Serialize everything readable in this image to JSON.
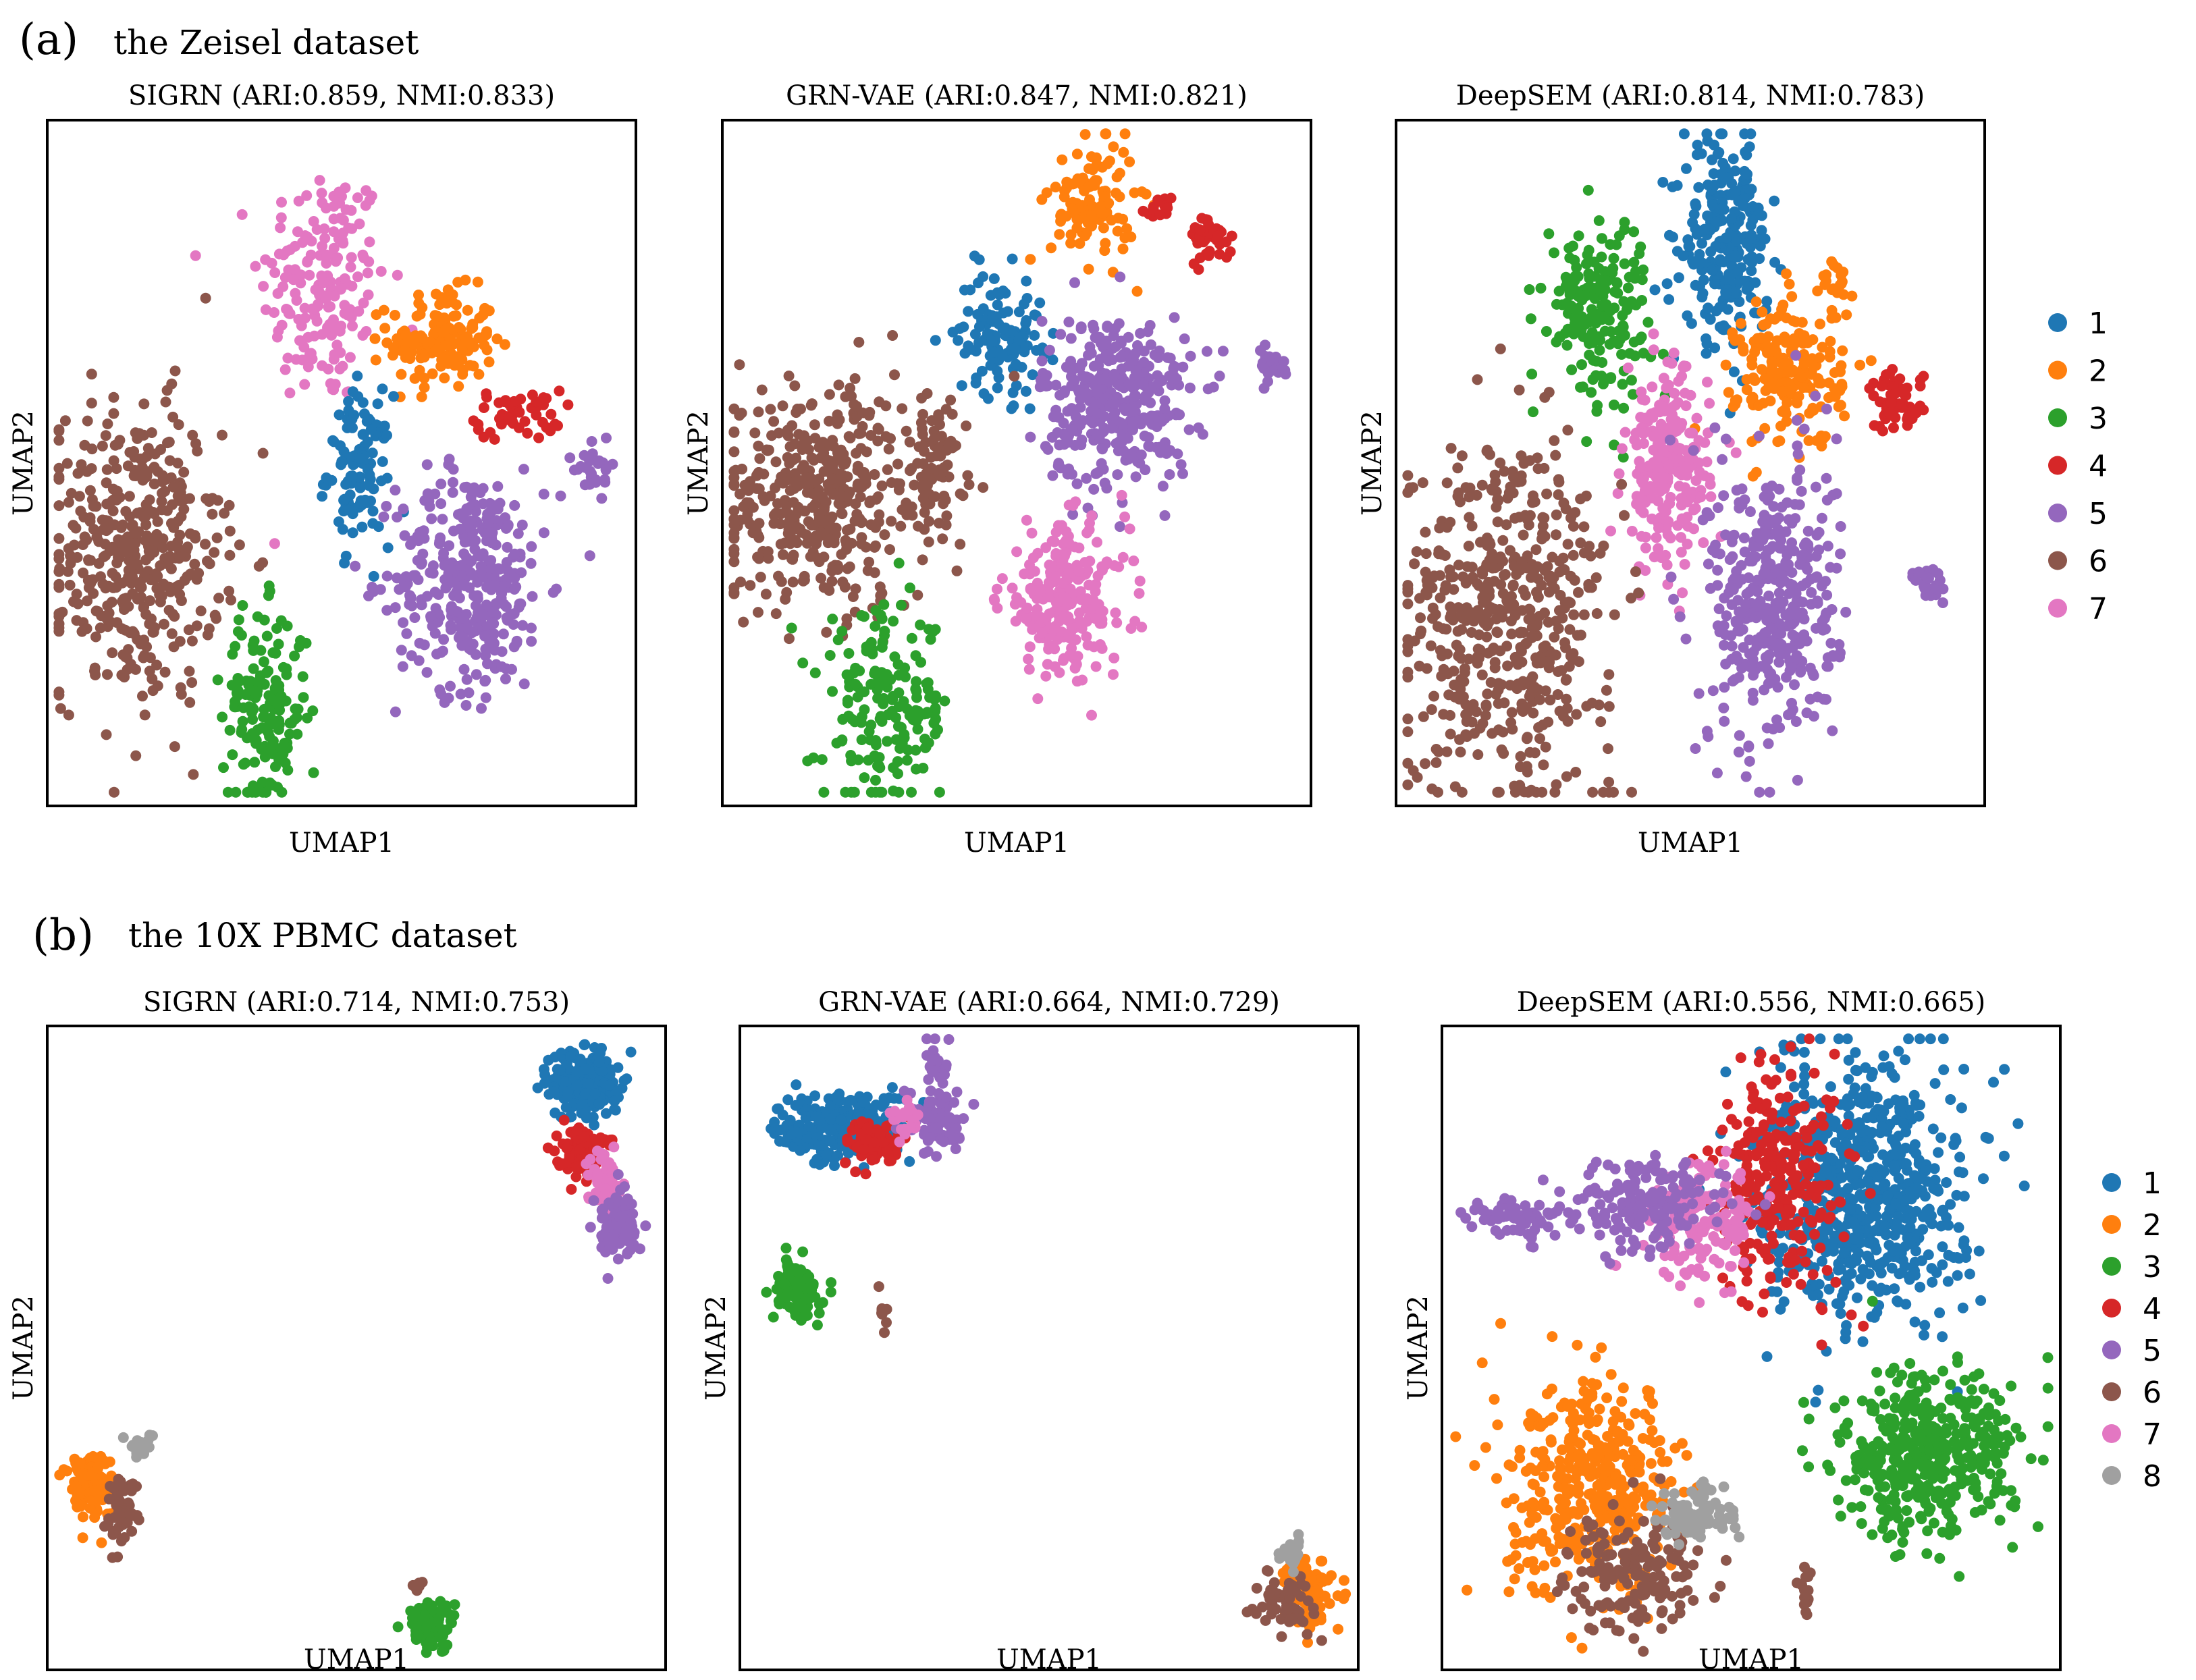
{
  "colors": {
    "1": "#1f77b4",
    "2": "#ff7f0e",
    "3": "#2ca02c",
    "4": "#d62728",
    "5": "#9467bd",
    "6": "#8c564b",
    "7": "#e377c2",
    "8": "#a0a0a0"
  },
  "panel_a": {
    "letter": "(a)",
    "heading": "the Zeisel dataset",
    "legend": [
      "1",
      "2",
      "3",
      "4",
      "5",
      "6",
      "7"
    ]
  },
  "panel_b": {
    "letter": "(b)",
    "heading": "the 10X PBMC dataset",
    "legend": [
      "1",
      "2",
      "3",
      "4",
      "5",
      "6",
      "7",
      "8"
    ]
  },
  "chart_data": [
    {
      "type": "scatter",
      "panel": "a",
      "title": "SIGRN (ARI:0.859, NMI:0.833)",
      "xlabel": "UMAP1",
      "ylabel": "UMAP2",
      "xlim": [
        0,
        1
      ],
      "ylim": [
        0,
        1
      ],
      "clusters": [
        {
          "label": "7",
          "cx": 0.47,
          "cy": 0.76,
          "sx": 0.06,
          "sy": 0.1,
          "n": 180
        },
        {
          "label": "2",
          "cx": 0.67,
          "cy": 0.68,
          "sx": 0.05,
          "sy": 0.04,
          "n": 150
        },
        {
          "label": "4",
          "cx": 0.8,
          "cy": 0.57,
          "sx": 0.04,
          "sy": 0.02,
          "n": 50
        },
        {
          "label": "1",
          "cx": 0.53,
          "cy": 0.49,
          "sx": 0.03,
          "sy": 0.06,
          "n": 110
        },
        {
          "label": "6",
          "cx": 0.15,
          "cy": 0.37,
          "sx": 0.08,
          "sy": 0.12,
          "n": 420
        },
        {
          "label": "5",
          "cx": 0.72,
          "cy": 0.33,
          "sx": 0.07,
          "sy": 0.09,
          "n": 350
        },
        {
          "label": "5",
          "cx": 0.93,
          "cy": 0.49,
          "sx": 0.02,
          "sy": 0.02,
          "n": 30
        },
        {
          "label": "3",
          "cx": 0.37,
          "cy": 0.14,
          "sx": 0.04,
          "sy": 0.08,
          "n": 170
        }
      ]
    },
    {
      "type": "scatter",
      "panel": "a",
      "title": "GRN-VAE (ARI:0.847, NMI:0.821)",
      "xlabel": "UMAP1",
      "ylabel": "UMAP2",
      "xlim": [
        0,
        1
      ],
      "ylim": [
        0,
        1
      ],
      "clusters": [
        {
          "label": "2",
          "cx": 0.63,
          "cy": 0.88,
          "sx": 0.04,
          "sy": 0.05,
          "n": 110
        },
        {
          "label": "4",
          "cx": 0.83,
          "cy": 0.83,
          "sx": 0.02,
          "sy": 0.02,
          "n": 40
        },
        {
          "label": "4",
          "cx": 0.74,
          "cy": 0.87,
          "sx": 0.015,
          "sy": 0.01,
          "n": 15
        },
        {
          "label": "1",
          "cx": 0.47,
          "cy": 0.69,
          "sx": 0.04,
          "sy": 0.05,
          "n": 120
        },
        {
          "label": "5",
          "cx": 0.67,
          "cy": 0.59,
          "sx": 0.07,
          "sy": 0.07,
          "n": 360
        },
        {
          "label": "5",
          "cx": 0.93,
          "cy": 0.64,
          "sx": 0.02,
          "sy": 0.015,
          "n": 25
        },
        {
          "label": "6",
          "cx": 0.17,
          "cy": 0.45,
          "sx": 0.1,
          "sy": 0.09,
          "n": 430
        },
        {
          "label": "6",
          "cx": 0.36,
          "cy": 0.5,
          "sx": 0.03,
          "sy": 0.05,
          "n": 70
        },
        {
          "label": "7",
          "cx": 0.58,
          "cy": 0.3,
          "sx": 0.06,
          "sy": 0.06,
          "n": 240
        },
        {
          "label": "3",
          "cx": 0.28,
          "cy": 0.14,
          "sx": 0.06,
          "sy": 0.08,
          "n": 180
        }
      ]
    },
    {
      "type": "scatter",
      "panel": "a",
      "title": "DeepSEM (ARI:0.814, NMI:0.783)",
      "xlabel": "UMAP1",
      "ylabel": "UMAP2",
      "xlim": [
        0,
        1
      ],
      "ylim": [
        0,
        1
      ],
      "clusters": [
        {
          "label": "1",
          "cx": 0.56,
          "cy": 0.82,
          "sx": 0.04,
          "sy": 0.08,
          "n": 250
        },
        {
          "label": "3",
          "cx": 0.34,
          "cy": 0.73,
          "sx": 0.05,
          "sy": 0.07,
          "n": 190
        },
        {
          "label": "2",
          "cx": 0.67,
          "cy": 0.63,
          "sx": 0.05,
          "sy": 0.06,
          "n": 200
        },
        {
          "label": "2",
          "cx": 0.75,
          "cy": 0.76,
          "sx": 0.015,
          "sy": 0.02,
          "n": 20
        },
        {
          "label": "4",
          "cx": 0.85,
          "cy": 0.59,
          "sx": 0.025,
          "sy": 0.025,
          "n": 60
        },
        {
          "label": "7",
          "cx": 0.46,
          "cy": 0.49,
          "sx": 0.04,
          "sy": 0.08,
          "n": 230
        },
        {
          "label": "6",
          "cx": 0.19,
          "cy": 0.28,
          "sx": 0.1,
          "sy": 0.14,
          "n": 520
        },
        {
          "label": "5",
          "cx": 0.64,
          "cy": 0.3,
          "sx": 0.06,
          "sy": 0.12,
          "n": 400
        },
        {
          "label": "5",
          "cx": 0.91,
          "cy": 0.32,
          "sx": 0.015,
          "sy": 0.02,
          "n": 25
        }
      ]
    },
    {
      "type": "scatter",
      "panel": "b",
      "title": "SIGRN (ARI:0.714, NMI:0.753)",
      "xlabel": "UMAP1",
      "ylabel": "UMAP2",
      "xlim": [
        0,
        1
      ],
      "ylim": [
        0,
        1
      ],
      "clusters": [
        {
          "label": "1",
          "cx": 0.87,
          "cy": 0.91,
          "sx": 0.03,
          "sy": 0.03,
          "n": 220
        },
        {
          "label": "4",
          "cx": 0.86,
          "cy": 0.81,
          "sx": 0.02,
          "sy": 0.02,
          "n": 100
        },
        {
          "label": "7",
          "cx": 0.9,
          "cy": 0.76,
          "sx": 0.015,
          "sy": 0.025,
          "n": 60
        },
        {
          "label": "5",
          "cx": 0.92,
          "cy": 0.69,
          "sx": 0.02,
          "sy": 0.03,
          "n": 80
        },
        {
          "label": "2",
          "cx": 0.07,
          "cy": 0.29,
          "sx": 0.02,
          "sy": 0.03,
          "n": 120
        },
        {
          "label": "6",
          "cx": 0.12,
          "cy": 0.25,
          "sx": 0.015,
          "sy": 0.03,
          "n": 50
        },
        {
          "label": "8",
          "cx": 0.15,
          "cy": 0.35,
          "sx": 0.012,
          "sy": 0.01,
          "n": 25
        },
        {
          "label": "3",
          "cx": 0.62,
          "cy": 0.07,
          "sx": 0.02,
          "sy": 0.02,
          "n": 110
        },
        {
          "label": "6",
          "cx": 0.6,
          "cy": 0.13,
          "sx": 0.005,
          "sy": 0.01,
          "n": 8
        }
      ]
    },
    {
      "type": "scatter",
      "panel": "b",
      "title": "GRN-VAE (ARI:0.664, NMI:0.729)",
      "xlabel": "UMAP1",
      "ylabel": "UMAP2",
      "xlim": [
        0,
        1
      ],
      "ylim": [
        0,
        1
      ],
      "clusters": [
        {
          "label": "1",
          "cx": 0.17,
          "cy": 0.84,
          "sx": 0.06,
          "sy": 0.03,
          "n": 260
        },
        {
          "label": "4",
          "cx": 0.22,
          "cy": 0.82,
          "sx": 0.025,
          "sy": 0.02,
          "n": 90
        },
        {
          "label": "5",
          "cx": 0.32,
          "cy": 0.85,
          "sx": 0.025,
          "sy": 0.03,
          "n": 70
        },
        {
          "label": "5",
          "cx": 0.32,
          "cy": 0.94,
          "sx": 0.012,
          "sy": 0.025,
          "n": 25
        },
        {
          "label": "7",
          "cx": 0.27,
          "cy": 0.85,
          "sx": 0.015,
          "sy": 0.015,
          "n": 25
        },
        {
          "label": "3",
          "cx": 0.09,
          "cy": 0.59,
          "sx": 0.02,
          "sy": 0.025,
          "n": 120
        },
        {
          "label": "6",
          "cx": 0.23,
          "cy": 0.55,
          "sx": 0.005,
          "sy": 0.015,
          "n": 8
        },
        {
          "label": "2",
          "cx": 0.92,
          "cy": 0.12,
          "sx": 0.02,
          "sy": 0.03,
          "n": 120
        },
        {
          "label": "6",
          "cx": 0.88,
          "cy": 0.11,
          "sx": 0.025,
          "sy": 0.025,
          "n": 60
        },
        {
          "label": "8",
          "cx": 0.89,
          "cy": 0.18,
          "sx": 0.012,
          "sy": 0.012,
          "n": 20
        }
      ]
    },
    {
      "type": "scatter",
      "panel": "b",
      "title": "DeepSEM (ARI:0.556, NMI:0.665)",
      "xlabel": "UMAP1",
      "ylabel": "UMAP2",
      "xlim": [
        0,
        1
      ],
      "ylim": [
        0,
        1
      ],
      "clusters": [
        {
          "label": "1",
          "cx": 0.68,
          "cy": 0.74,
          "sx": 0.09,
          "sy": 0.11,
          "n": 700
        },
        {
          "label": "4",
          "cx": 0.55,
          "cy": 0.76,
          "sx": 0.06,
          "sy": 0.1,
          "n": 260
        },
        {
          "label": "7",
          "cx": 0.42,
          "cy": 0.7,
          "sx": 0.05,
          "sy": 0.05,
          "n": 160
        },
        {
          "label": "5",
          "cx": 0.33,
          "cy": 0.72,
          "sx": 0.07,
          "sy": 0.04,
          "n": 170
        },
        {
          "label": "5",
          "cx": 0.12,
          "cy": 0.7,
          "sx": 0.05,
          "sy": 0.02,
          "n": 60
        },
        {
          "label": "3",
          "cx": 0.78,
          "cy": 0.33,
          "sx": 0.08,
          "sy": 0.07,
          "n": 420
        },
        {
          "label": "2",
          "cx": 0.25,
          "cy": 0.28,
          "sx": 0.08,
          "sy": 0.09,
          "n": 420
        },
        {
          "label": "6",
          "cx": 0.31,
          "cy": 0.15,
          "sx": 0.06,
          "sy": 0.05,
          "n": 160
        },
        {
          "label": "8",
          "cx": 0.41,
          "cy": 0.24,
          "sx": 0.035,
          "sy": 0.025,
          "n": 100
        },
        {
          "label": "6",
          "cx": 0.59,
          "cy": 0.12,
          "sx": 0.008,
          "sy": 0.02,
          "n": 15
        }
      ]
    }
  ]
}
